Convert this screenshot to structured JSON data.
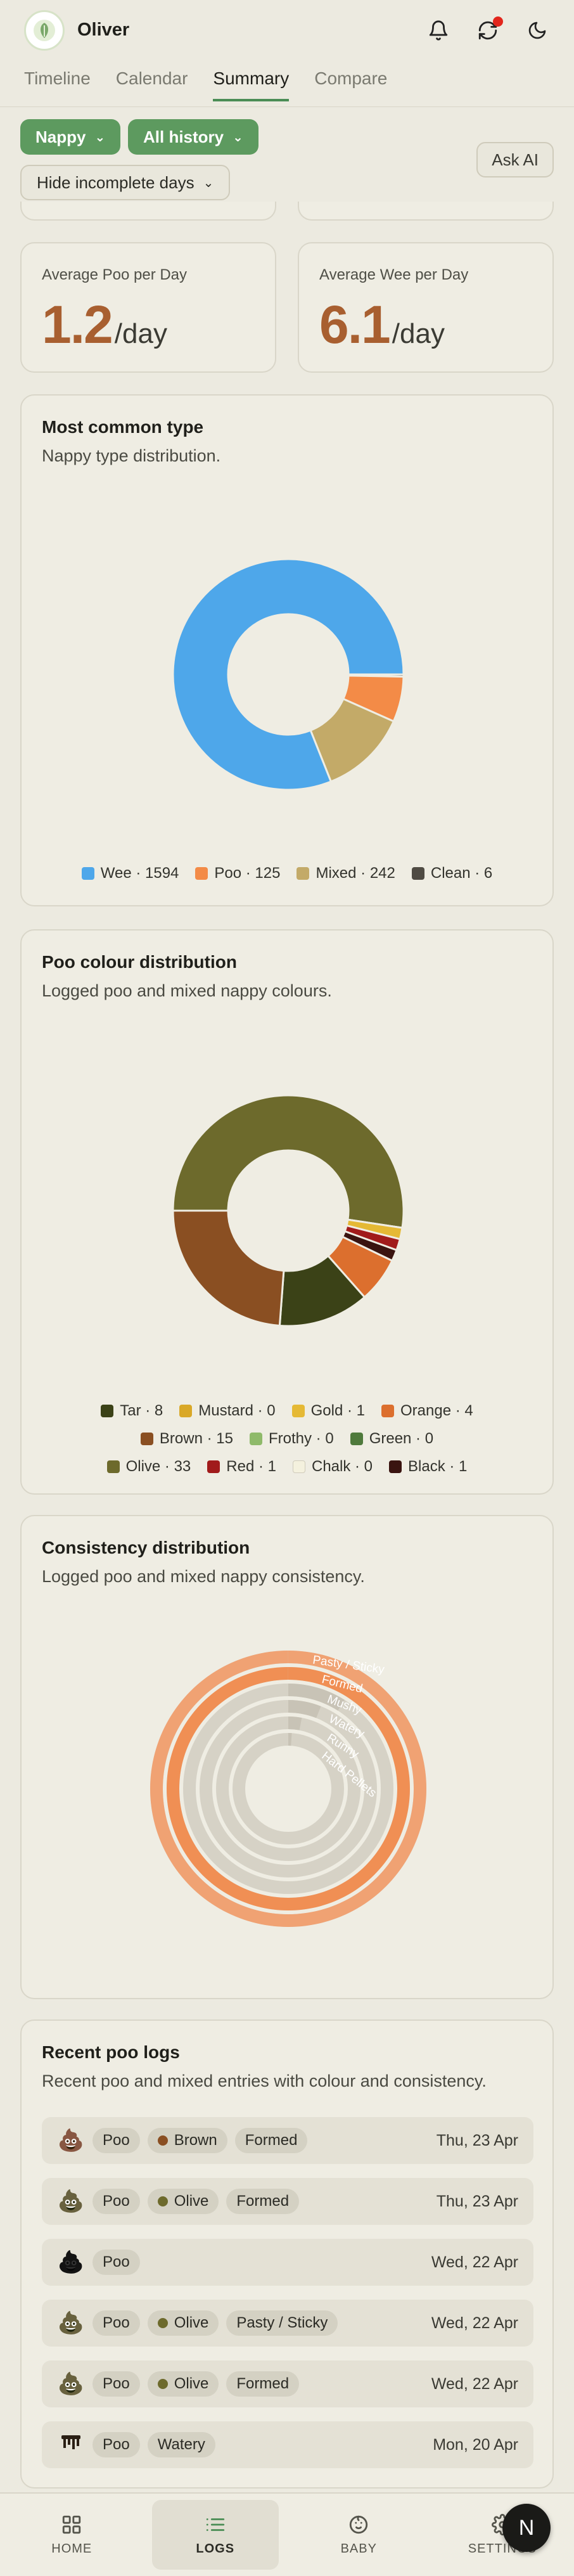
{
  "header": {
    "baby_name": "Oliver",
    "icons": [
      "baby-logo-icon",
      "bell-icon",
      "sync-icon",
      "moon-icon"
    ]
  },
  "tabs": [
    {
      "label": "Timeline",
      "active": false
    },
    {
      "label": "Calendar",
      "active": false
    },
    {
      "label": "Summary",
      "active": true
    },
    {
      "label": "Compare",
      "active": false
    }
  ],
  "filters": {
    "type": "Nappy",
    "range": "All history",
    "days": "Hide incomplete days",
    "ask_ai": "Ask AI"
  },
  "stats": [
    {
      "label": "Average Poo per Day",
      "value": "1.2",
      "unit": "/day"
    },
    {
      "label": "Average Wee per Day",
      "value": "6.1",
      "unit": "/day"
    }
  ],
  "chart_data": [
    {
      "type": "pie",
      "variant": "donut",
      "title": "Most common type",
      "subtitle": "Nappy type distribution.",
      "categories": [
        "Wee",
        "Poo",
        "Mixed",
        "Clean"
      ],
      "values": [
        1594,
        125,
        242,
        6
      ],
      "colors": [
        "#4ea7ea",
        "#f38b47",
        "#c3aa68",
        "#4f4b43"
      ],
      "legend_labels": [
        "Wee · 1594",
        "Poo · 125",
        "Mixed · 242",
        "Clean · 6"
      ],
      "legend_position": "bottom"
    },
    {
      "type": "pie",
      "variant": "donut",
      "title": "Poo colour distribution",
      "subtitle": "Logged poo and mixed nappy colours.",
      "categories": [
        "Tar",
        "Mustard",
        "Gold",
        "Orange",
        "Brown",
        "Frothy",
        "Green",
        "Olive",
        "Red",
        "Chalk",
        "Black"
      ],
      "values": [
        8,
        0,
        1,
        4,
        15,
        0,
        0,
        33,
        1,
        0,
        1
      ],
      "colors": [
        "#3b4217",
        "#d9a827",
        "#e5b935",
        "#dc6f2e",
        "#8a4f22",
        "#8fba6a",
        "#4f7a3c",
        "#6d6a2c",
        "#a11b1b",
        "#f4f1de",
        "#3a1410"
      ],
      "slice_order": [
        "Olive",
        "Mustard",
        "Gold",
        "Red",
        "Black",
        "Orange",
        "Tar",
        "Brown"
      ],
      "slice_colors": [
        "#6d6a2c",
        "#d9a827",
        "#e5b935",
        "#a11b1b",
        "#3a1410",
        "#dc6f2e",
        "#3b4217",
        "#8a4f22"
      ],
      "slice_values": [
        33,
        0,
        1,
        1,
        1,
        4,
        8,
        15
      ],
      "legend_labels": [
        "Tar · 8",
        "Mustard · 0",
        "Gold · 1",
        "Orange · 4",
        "Brown · 15",
        "Frothy · 0",
        "Green · 0",
        "Olive · 33",
        "Red · 1",
        "Chalk · 0",
        "Black · 1"
      ],
      "legend_position": "bottom"
    },
    {
      "type": "radial-bar",
      "title": "Consistency distribution",
      "subtitle": "Logged poo and mixed nappy consistency.",
      "categories": [
        "Pasty / Sticky",
        "Formed",
        "Mushy",
        "Watery",
        "Runny",
        "Hard Pellets"
      ],
      "values": [
        100,
        100,
        9,
        6,
        3,
        1
      ],
      "value_scale": "percent of the largest category",
      "colors": [
        "#f0a273",
        "#f08f54",
        "#d6d2c6",
        "#d6d2c6",
        "#d6d2c6",
        "#d6d2c6"
      ],
      "track_color": "#d6d2c6"
    }
  ],
  "recent_logs": {
    "title": "Recent poo logs",
    "subtitle": "Recent poo and mixed entries with colour and consistency.",
    "rows": [
      {
        "emoji": "💩",
        "type": "Poo",
        "colour": "Brown",
        "colour_hex": "#8a4f22",
        "consistency": "Formed",
        "date": "Thu, 23 Apr"
      },
      {
        "emoji": "💩",
        "type": "Poo",
        "colour": "Olive",
        "colour_hex": "#6d6a2c",
        "consistency": "Formed",
        "date": "Thu, 23 Apr"
      },
      {
        "emoji": "💩",
        "type": "Poo",
        "colour": "",
        "colour_hex": "",
        "consistency": "",
        "date": "Wed, 22 Apr"
      },
      {
        "emoji": "💩",
        "type": "Poo",
        "colour": "Olive",
        "colour_hex": "#6d6a2c",
        "consistency": "Pasty / Sticky",
        "date": "Wed, 22 Apr"
      },
      {
        "emoji": "💩",
        "type": "Poo",
        "colour": "Olive",
        "colour_hex": "#6d6a2c",
        "consistency": "Formed",
        "date": "Wed, 22 Apr"
      },
      {
        "emoji": "💧",
        "type": "Poo",
        "colour": "",
        "colour_hex": "",
        "consistency": "Watery",
        "date": "Mon, 20 Apr"
      }
    ]
  },
  "bottom_nav": [
    {
      "label": "HOME",
      "icon": "grid-icon",
      "active": false
    },
    {
      "label": "LOGS",
      "icon": "list-icon",
      "active": true
    },
    {
      "label": "BABY",
      "icon": "baby-face-icon",
      "active": false
    },
    {
      "label": "SETTINGS",
      "icon": "gear-icon",
      "active": false
    }
  ],
  "fab": {
    "label": "N"
  }
}
